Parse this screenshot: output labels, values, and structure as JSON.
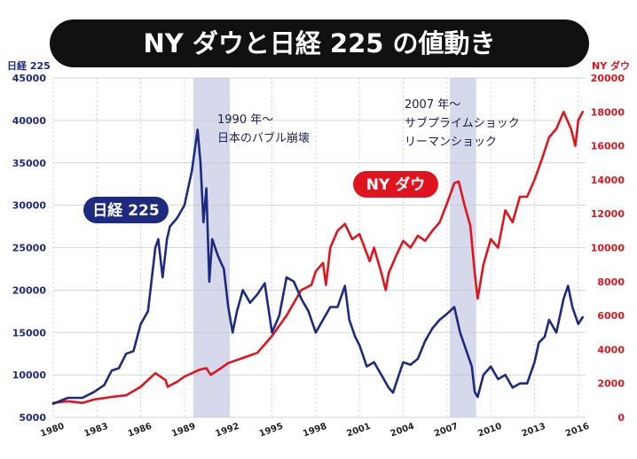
{
  "chart_data": {
    "type": "line",
    "title": "NY ダウと日経 225 の値動き",
    "left_axis": {
      "label": "日経 225",
      "ylim": [
        5000,
        45000
      ],
      "ticks": [
        5000,
        10000,
        15000,
        20000,
        25000,
        30000,
        35000,
        40000,
        45000
      ],
      "tick_labels": [
        "5000",
        "10000",
        "15000",
        "20000",
        "25000",
        "30000",
        "35000",
        "40000",
        "45000"
      ],
      "color": "#1e2a80"
    },
    "right_axis": {
      "label": "NY ダウ",
      "ylim": [
        0,
        20000
      ],
      "ticks": [
        0,
        2000,
        4000,
        6000,
        8000,
        10000,
        12000,
        14000,
        16000,
        18000,
        20000
      ],
      "tick_labels": [
        "0",
        "2000",
        "4000",
        "6000",
        "8000",
        "10000",
        "12000",
        "14000",
        "16000",
        "18000",
        "20000"
      ],
      "color": "#e0141e"
    },
    "x_axis": {
      "xlim": [
        1980,
        2016.5
      ],
      "ticks": [
        1980,
        1983,
        1986,
        1989,
        1992,
        1995,
        1998,
        2001,
        2004,
        2007,
        2010,
        2013,
        2016
      ],
      "tick_labels": [
        "1980",
        "1983",
        "1986",
        "1989",
        "1992",
        "1995",
        "1998",
        "2001",
        "2004",
        "2007",
        "2010",
        "2013",
        "2016"
      ]
    },
    "grid": true,
    "shaded_periods": [
      {
        "from": 1989.6,
        "to": 1992.1
      },
      {
        "from": 2007.2,
        "to": 2009.0
      }
    ],
    "annotations": [
      {
        "lines": [
          "1990 年〜",
          "日本のバブル崩壊"
        ]
      },
      {
        "lines": [
          "2007 年〜",
          "サブプライムショック",
          "リーマンショック"
        ]
      }
    ],
    "series": [
      {
        "name": "日経 225",
        "axis": "left",
        "color": "#1e2a80",
        "x": [
          1980,
          1981,
          1982,
          1982.8,
          1983.5,
          1984,
          1984.5,
          1985,
          1985.5,
          1986,
          1986.5,
          1987,
          1987.2,
          1987.5,
          1987.8,
          1988,
          1988.5,
          1989,
          1989.5,
          1989.9,
          1990.1,
          1990.3,
          1990.5,
          1990.7,
          1990.9,
          1991.3,
          1991.7,
          1992,
          1992.3,
          1992.6,
          1993,
          1993.5,
          1994,
          1994.5,
          1995,
          1995.5,
          1996,
          1996.5,
          1997,
          1997.5,
          1998,
          1998.5,
          1999,
          1999.5,
          2000,
          2000.3,
          2000.7,
          2001,
          2001.5,
          2002,
          2002.5,
          2003,
          2003.3,
          2003.7,
          2004,
          2004.5,
          2005,
          2005.5,
          2006,
          2006.5,
          2007,
          2007.5,
          2007.9,
          2008.3,
          2008.7,
          2008.9,
          2009.1,
          2009.5,
          2010,
          2010.5,
          2011,
          2011.5,
          2012,
          2012.5,
          2013,
          2013.3,
          2013.7,
          2014,
          2014.5,
          2015,
          2015.3,
          2015.6,
          2016,
          2016.3
        ],
        "y": [
          6600,
          7300,
          7300,
          8000,
          8800,
          10500,
          10800,
          12500,
          12800,
          16000,
          17500,
          25000,
          26000,
          21500,
          26000,
          27500,
          28500,
          30000,
          34000,
          38900,
          35000,
          28000,
          32000,
          21000,
          26000,
          24000,
          22500,
          18000,
          15000,
          17500,
          20000,
          18500,
          19500,
          20800,
          15000,
          17000,
          21500,
          21000,
          19000,
          17500,
          15000,
          16500,
          18000,
          18000,
          20500,
          16500,
          14500,
          13500,
          11000,
          11500,
          10000,
          8500,
          7900,
          10000,
          11500,
          11200,
          11900,
          14000,
          15500,
          16500,
          17200,
          18000,
          15000,
          13000,
          11000,
          8000,
          7400,
          10000,
          11000,
          9500,
          10000,
          8500,
          9000,
          9000,
          11500,
          13800,
          14500,
          16500,
          15000,
          19000,
          20500,
          18000,
          16000,
          16800
        ]
      },
      {
        "name": "NY ダウ",
        "axis": "right",
        "color": "#e0141e",
        "x": [
          1980,
          1981,
          1982,
          1982.8,
          1984,
          1985,
          1986,
          1987,
          1987.7,
          1987.85,
          1988.5,
          1989,
          1990,
          1990.5,
          1990.8,
          1991.5,
          1992,
          1993,
          1994,
          1995,
          1996,
          1997,
          1997.7,
          1998,
          1998.5,
          1998.7,
          1999,
          1999.5,
          2000,
          2000.5,
          2001,
          2001.7,
          2002,
          2002.5,
          2002.8,
          2003,
          2003.5,
          2004,
          2004.5,
          2005,
          2005.5,
          2006,
          2006.5,
          2007,
          2007.5,
          2007.8,
          2008.2,
          2008.6,
          2008.9,
          2009.1,
          2009.5,
          2010,
          2010.5,
          2011,
          2011.5,
          2012,
          2012.5,
          2013,
          2013.5,
          2014,
          2014.5,
          2015,
          2015.5,
          2015.8,
          2016,
          2016.3
        ],
        "y": [
          850,
          950,
          850,
          1050,
          1200,
          1300,
          1800,
          2600,
          2200,
          1800,
          2100,
          2400,
          2800,
          2900,
          2500,
          2900,
          3200,
          3500,
          3800,
          4800,
          6000,
          7500,
          7800,
          8600,
          9100,
          7800,
          10000,
          11000,
          11400,
          10500,
          10800,
          9200,
          10000,
          8500,
          7500,
          8500,
          9500,
          10400,
          10000,
          10700,
          10400,
          11000,
          11500,
          12600,
          13800,
          13900,
          12500,
          11300,
          8500,
          7000,
          9000,
          10500,
          10000,
          12200,
          11500,
          13000,
          13000,
          14000,
          15200,
          16500,
          17000,
          18000,
          17000,
          16000,
          17500,
          18000
        ]
      }
    ]
  }
}
